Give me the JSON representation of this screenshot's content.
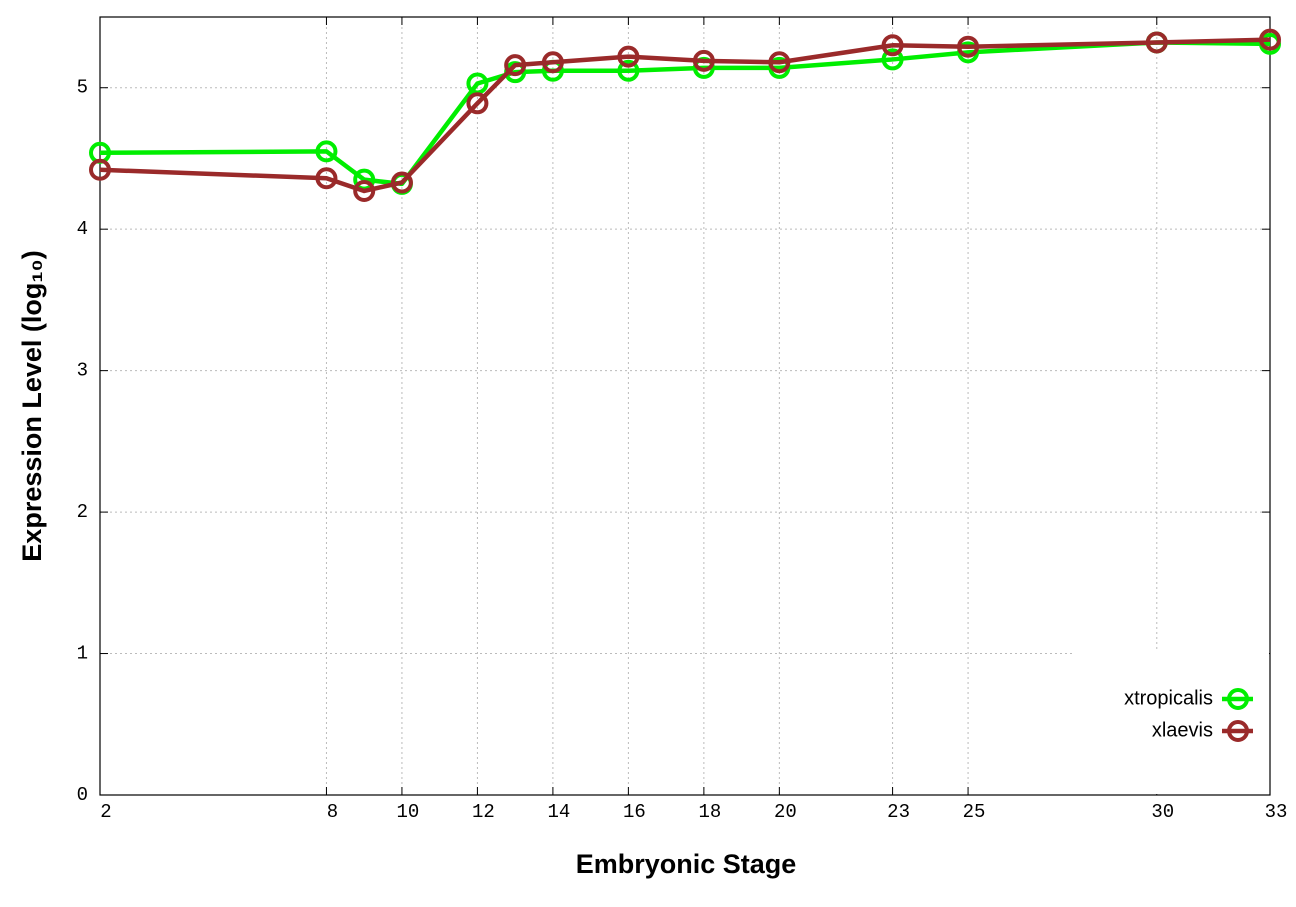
{
  "chart_data": {
    "type": "line",
    "x_label": "Embryonic Stage",
    "y_label": "Expression Level (log₁₀)",
    "x": [
      2,
      8,
      9,
      10,
      12,
      13,
      14,
      16,
      18,
      20,
      23,
      25,
      30,
      33
    ],
    "series": [
      {
        "name": "xtropicalis",
        "color": "#00ee00",
        "values": [
          4.54,
          4.55,
          4.35,
          4.32,
          5.03,
          5.11,
          5.12,
          5.12,
          5.14,
          5.14,
          5.2,
          5.25,
          5.32,
          5.31
        ]
      },
      {
        "name": "xlaevis",
        "color": "#9a2a2a",
        "values": [
          4.42,
          4.36,
          4.27,
          4.33,
          4.89,
          5.16,
          5.18,
          5.22,
          5.19,
          5.18,
          5.3,
          5.29,
          5.32,
          5.34
        ]
      }
    ],
    "xlim": [
      2,
      33
    ],
    "ylim": [
      0,
      5.5
    ],
    "xticks": [
      2,
      8,
      10,
      12,
      14,
      16,
      18,
      20,
      23,
      25,
      30,
      33
    ],
    "yticks": [
      0,
      1,
      2,
      3,
      4,
      5
    ],
    "grid": true,
    "legend": "bottom-right"
  }
}
